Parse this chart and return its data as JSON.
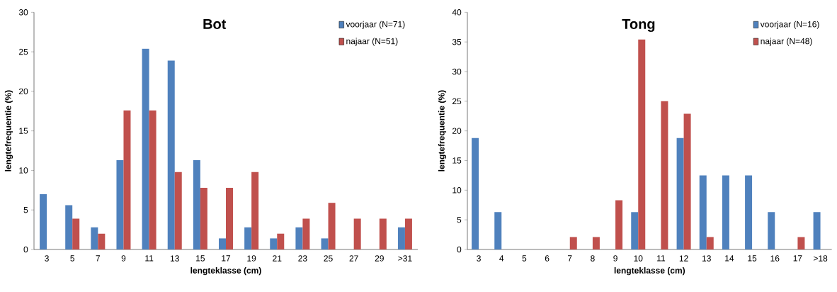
{
  "chart_data": [
    {
      "type": "bar",
      "title": "Bot",
      "xlabel": "lengteklasse (cm)",
      "ylabel": "lengtefrequentie (%)",
      "categories": [
        "3",
        "5",
        "7",
        "9",
        "11",
        "13",
        "15",
        "17",
        "19",
        "21",
        "23",
        "25",
        "27",
        "29",
        ">31"
      ],
      "ylim": [
        0,
        30
      ],
      "yticks": [
        0,
        5,
        10,
        15,
        20,
        25,
        30
      ],
      "legend": "top right",
      "series": [
        {
          "name": "voorjaar (N=71)",
          "color": "#4f81bd",
          "values": [
            7.0,
            5.6,
            2.8,
            11.3,
            25.4,
            23.9,
            11.3,
            1.4,
            2.8,
            1.4,
            2.8,
            1.4,
            0,
            0,
            2.8
          ]
        },
        {
          "name": "najaar (N=51)",
          "color": "#c0504d",
          "values": [
            0,
            3.9,
            2.0,
            17.6,
            17.6,
            9.8,
            7.8,
            7.8,
            9.8,
            2.0,
            3.9,
            5.9,
            3.9,
            3.9,
            3.9
          ]
        }
      ]
    },
    {
      "type": "bar",
      "title": "Tong",
      "xlabel": "lengteklasse (cm)",
      "ylabel": "lengtefrequentie (%)",
      "categories": [
        "3",
        "4",
        "5",
        "6",
        "7",
        "8",
        "9",
        "10",
        "11",
        "12",
        "13",
        "14",
        "15",
        "16",
        "17",
        ">18"
      ],
      "ylim": [
        0,
        40
      ],
      "yticks": [
        0,
        5,
        10,
        15,
        20,
        25,
        30,
        35,
        40
      ],
      "legend": "top right",
      "series": [
        {
          "name": "voorjaar (N=16)",
          "color": "#4f81bd",
          "values": [
            18.8,
            6.3,
            0,
            0,
            0,
            0,
            0,
            6.3,
            0,
            18.8,
            12.5,
            12.5,
            12.5,
            6.3,
            0,
            6.3
          ]
        },
        {
          "name": "najaar (N=48)",
          "color": "#c0504d",
          "values": [
            0,
            0,
            0,
            0,
            2.1,
            2.1,
            8.3,
            35.4,
            25.0,
            22.9,
            2.1,
            0,
            0,
            0,
            2.1,
            0
          ]
        }
      ]
    }
  ]
}
